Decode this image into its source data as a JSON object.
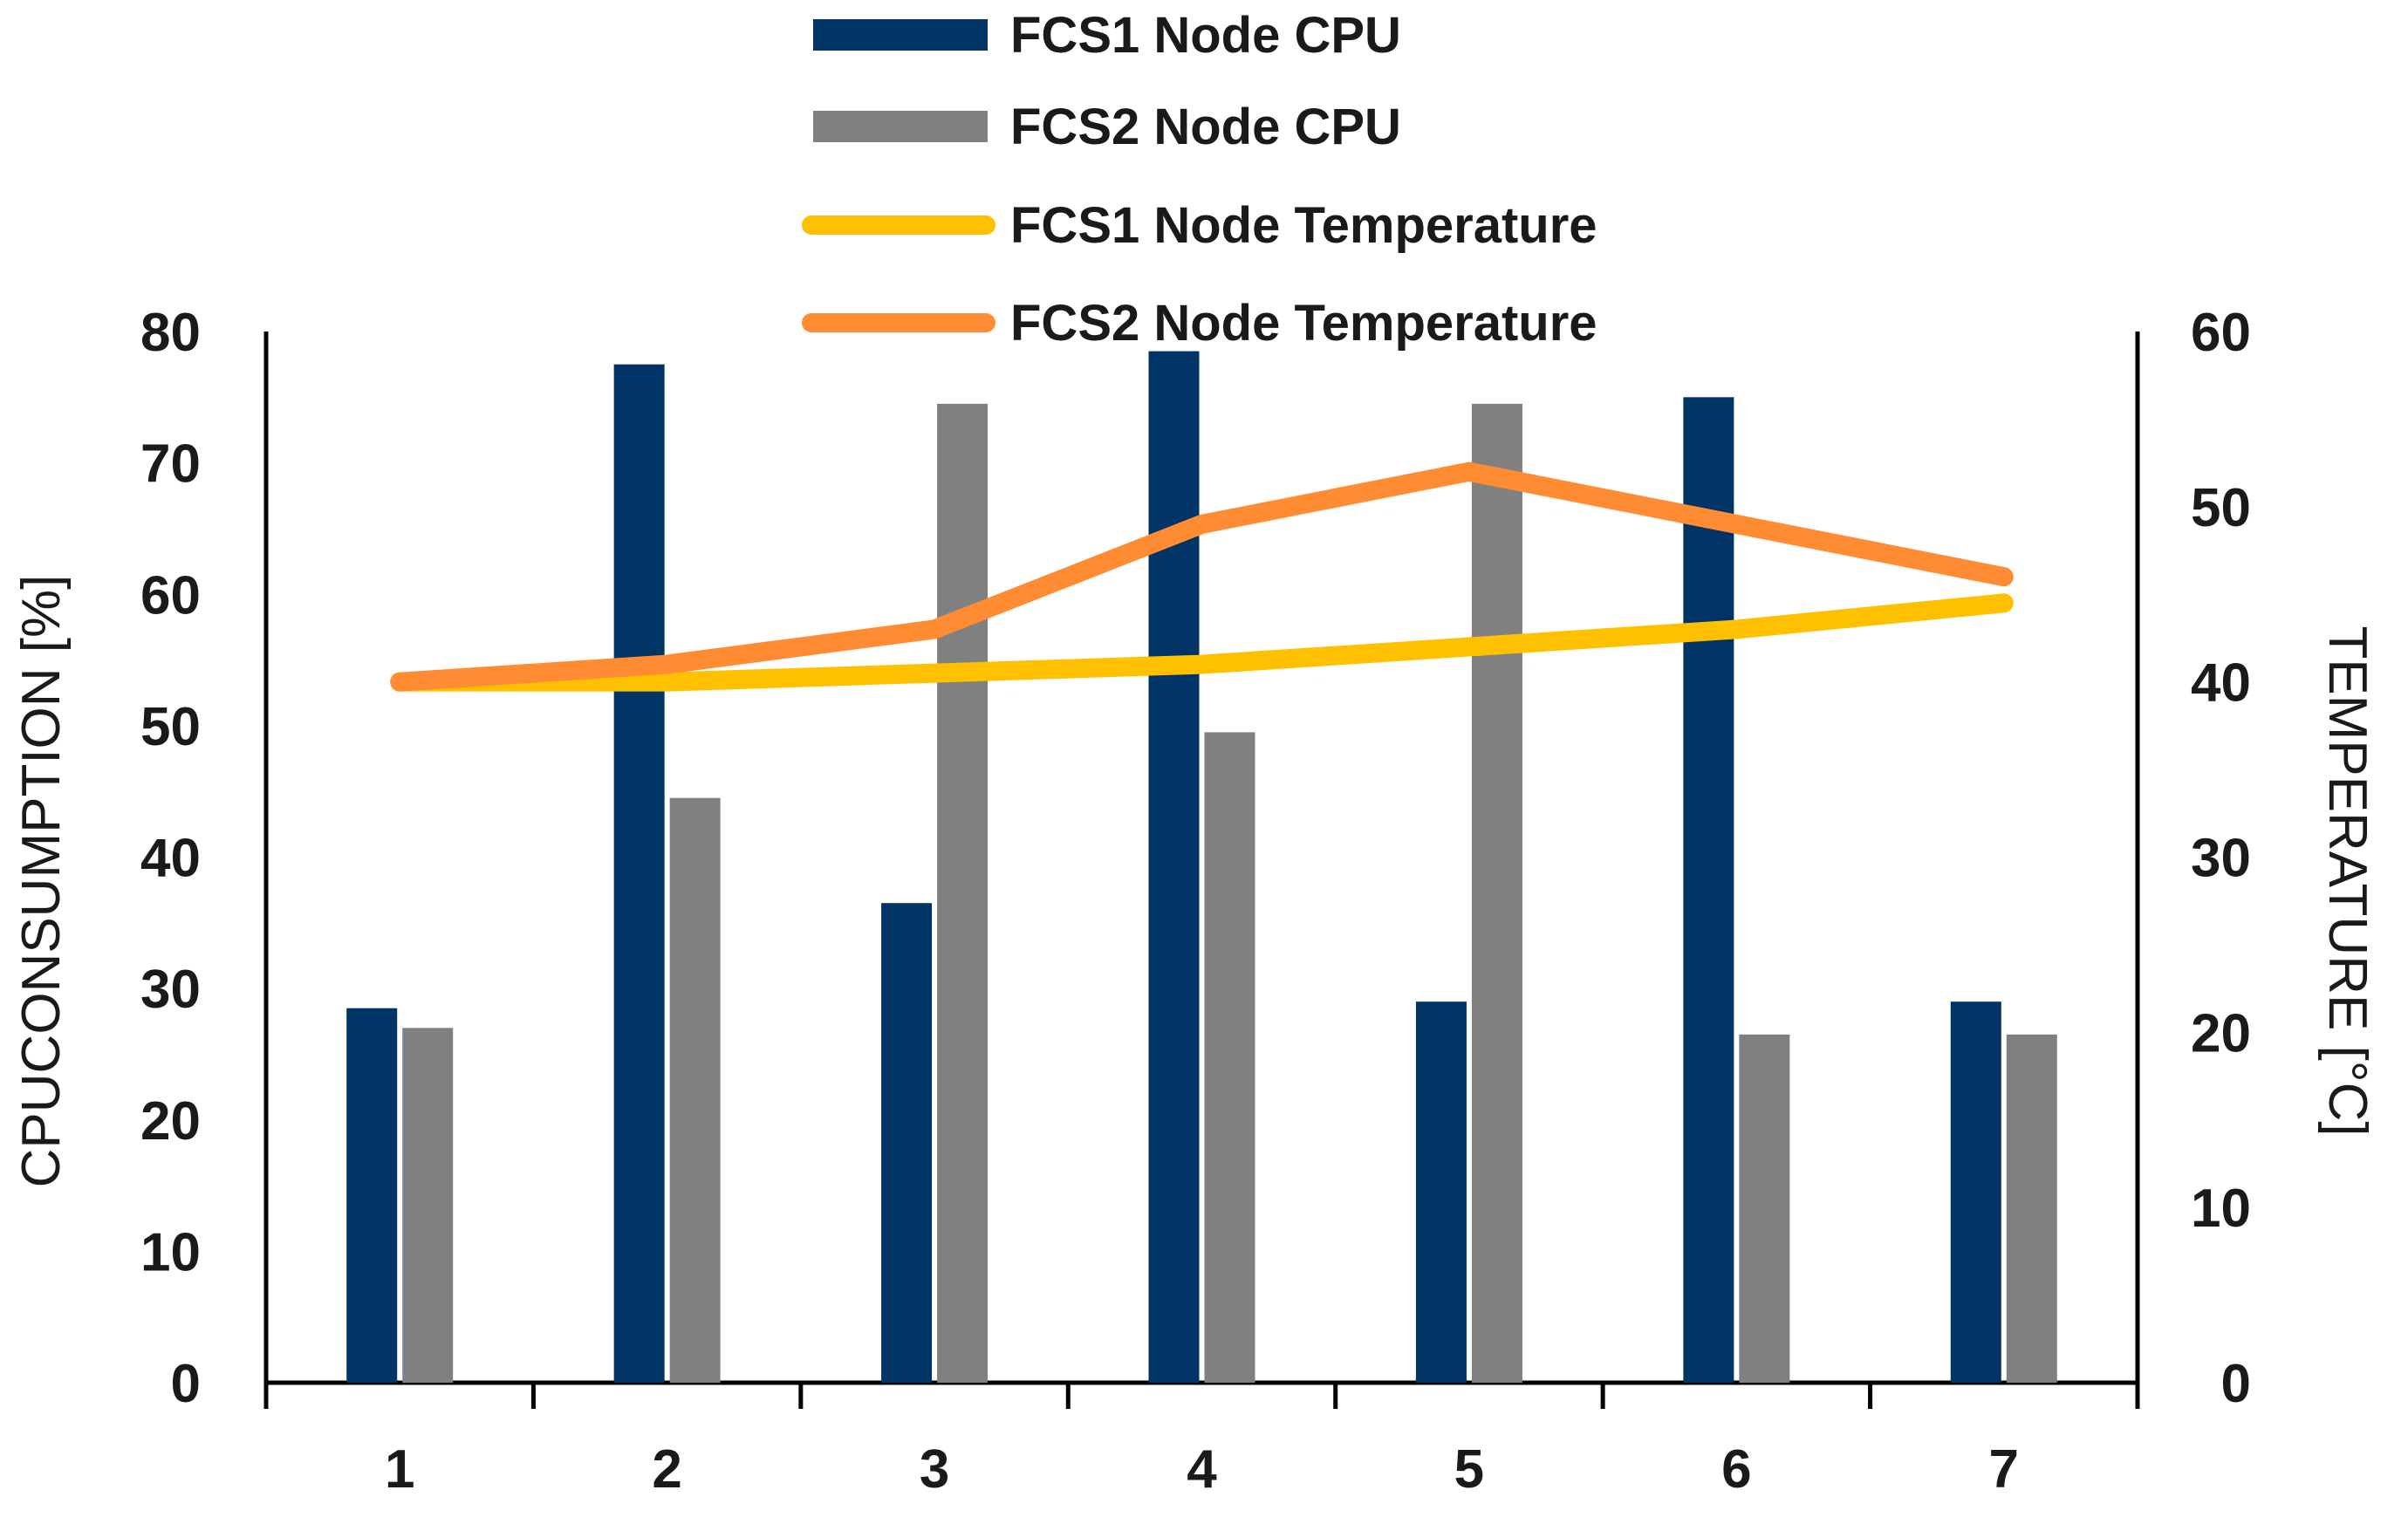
{
  "chart_data": {
    "type": "bar",
    "categories": [
      "1",
      "2",
      "3",
      "4",
      "5",
      "6",
      "7"
    ],
    "series": [
      {
        "name": "FCS1 Node CPU",
        "kind": "bar",
        "axis": "left",
        "color": "#003366",
        "values": [
          28.5,
          77.5,
          36.5,
          78.5,
          29,
          75,
          29
        ]
      },
      {
        "name": "FCS2 Node CPU",
        "kind": "bar",
        "axis": "left",
        "color": "#808080",
        "values": [
          27,
          44.5,
          74.5,
          49.5,
          74.5,
          26.5,
          26.5
        ]
      },
      {
        "name": "FCS1 Node Temperature",
        "kind": "line",
        "axis": "right",
        "color": "#FFC000",
        "values": [
          40,
          40,
          40.5,
          41,
          42,
          43,
          44.5
        ]
      },
      {
        "name": "FCS2 Node Temperature",
        "kind": "line",
        "axis": "right",
        "color": "#FF8C33",
        "values": [
          40,
          41,
          43,
          49,
          52,
          49,
          46
        ]
      }
    ],
    "ylabel": "CPUCONSUMPTION [%]",
    "ylim": [
      0,
      80
    ],
    "yticks": [
      "0",
      "10",
      "20",
      "30",
      "40",
      "50",
      "60",
      "70",
      "80"
    ],
    "y2label": "TEMPERATURE [°C]",
    "y2lim": [
      0,
      60
    ],
    "y2ticks": [
      "0",
      "10",
      "20",
      "30",
      "40",
      "50",
      "60"
    ],
    "xlabel": "",
    "legend_position": "top-center",
    "grid": false
  }
}
